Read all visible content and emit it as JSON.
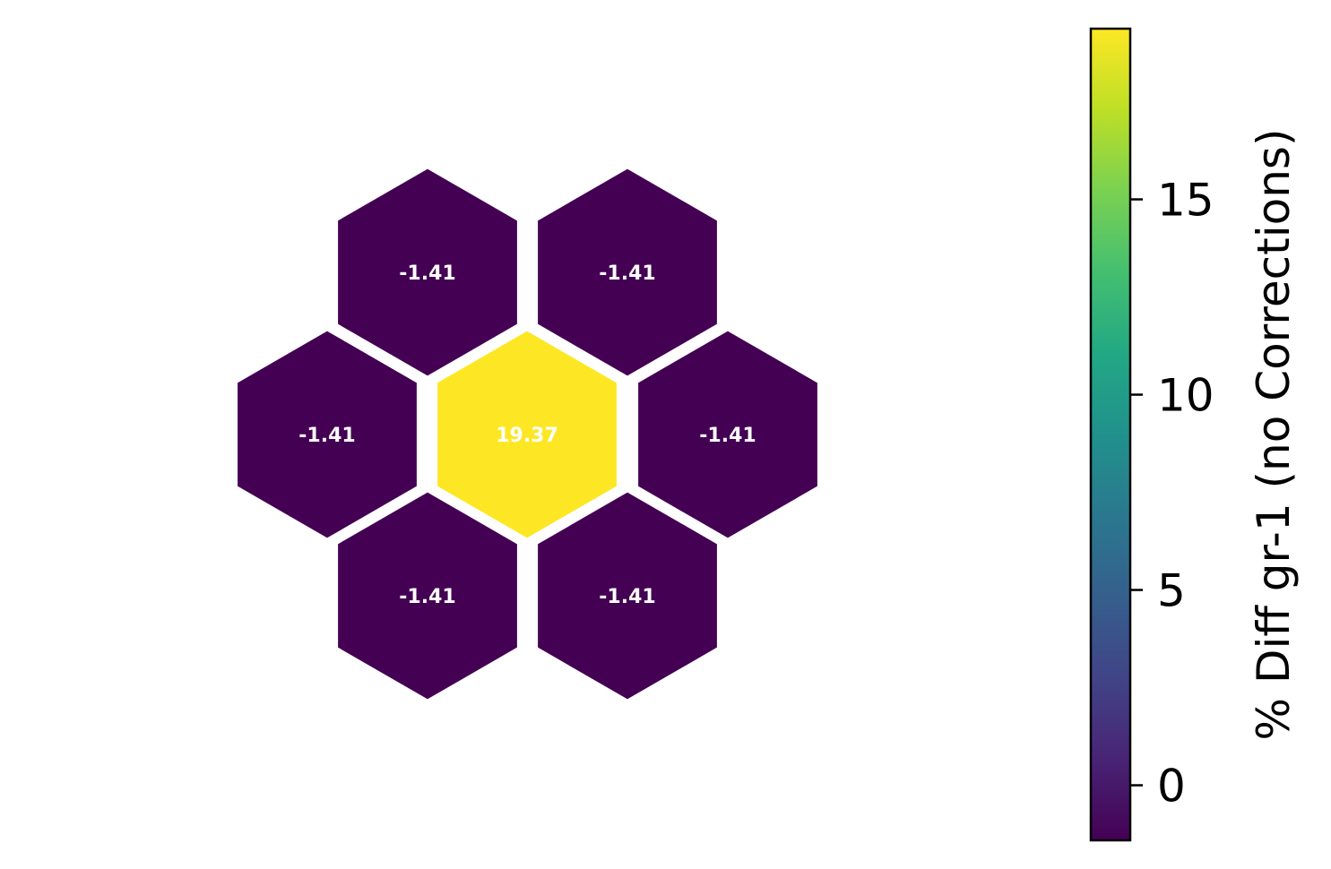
{
  "chart_data": {
    "type": "heatmap",
    "layout": "hexagonal",
    "cells": [
      {
        "id": "top-left",
        "value": -1.41,
        "label": "-1.41"
      },
      {
        "id": "top-right",
        "value": -1.41,
        "label": "-1.41"
      },
      {
        "id": "middle-left",
        "value": -1.41,
        "label": "-1.41"
      },
      {
        "id": "center",
        "value": 19.37,
        "label": "19.37"
      },
      {
        "id": "middle-right",
        "value": -1.41,
        "label": "-1.41"
      },
      {
        "id": "bottom-left",
        "value": -1.41,
        "label": "-1.41"
      },
      {
        "id": "bottom-right",
        "value": -1.41,
        "label": "-1.41"
      }
    ],
    "colorbar": {
      "label": "% Diff gr-1 (no Corrections)",
      "range": [
        -1.41,
        19.37
      ],
      "ticks": [
        0,
        5,
        10,
        15
      ],
      "tick_labels": [
        "0",
        "5",
        "10",
        "15"
      ],
      "colormap": "viridis"
    }
  }
}
